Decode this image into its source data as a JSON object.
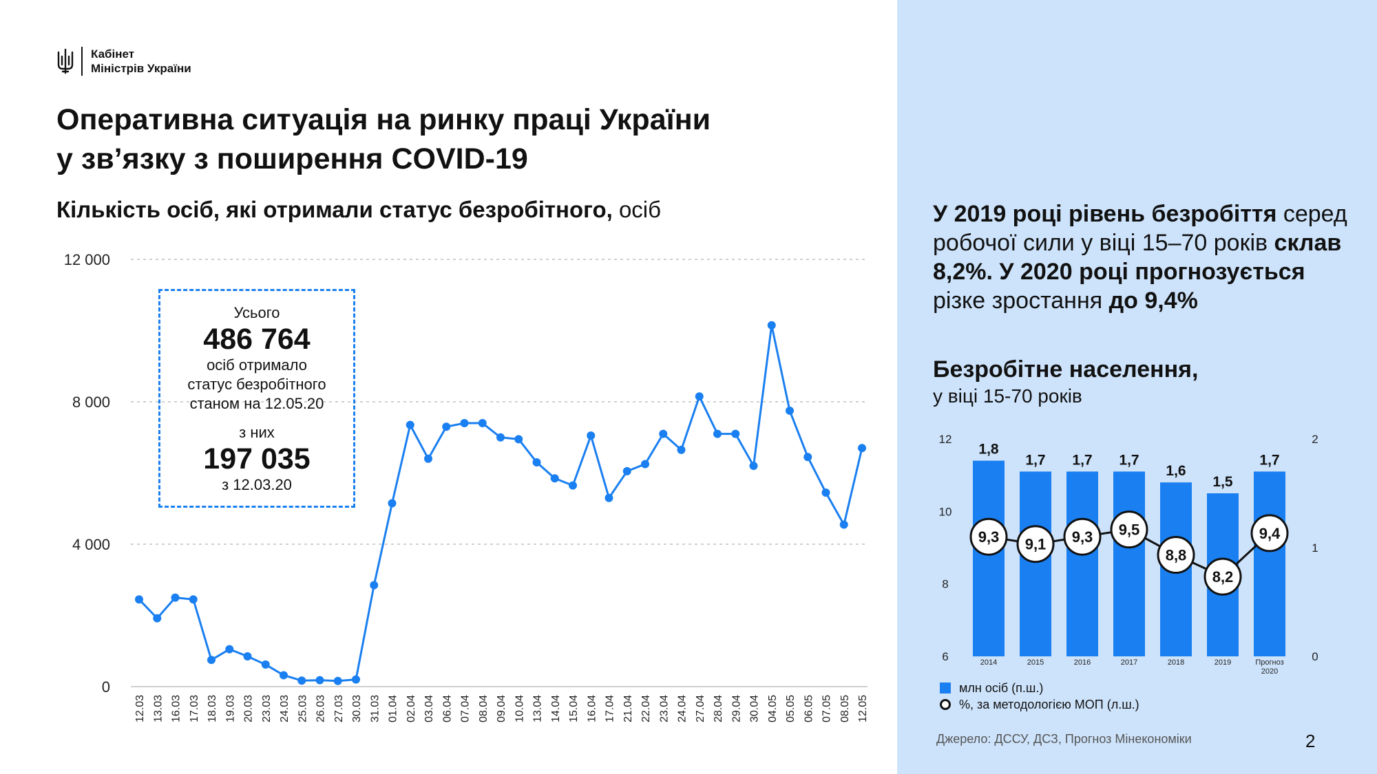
{
  "header": {
    "logo_line1": "Кабінет",
    "logo_line2": "Міністрів України",
    "title_line1": "Оперативна ситуація на ринку праці України",
    "title_line2": "у зв’язку з поширення COVID-19",
    "subtitle_bold": "Кількість осіб, які отримали статус безробітного,",
    "subtitle_regular": " осіб"
  },
  "summary_box": {
    "label_total": "Усього",
    "total": "486 764",
    "line1": "осіб отримало",
    "line2": "статус безробітного",
    "line3": "станом на 12.05.20",
    "label_of_them": "з них",
    "since_value": "197 035",
    "since_label": "з 12.03.20"
  },
  "chart_data": [
    {
      "type": "line",
      "title": "Кількість осіб, які отримали статус безробітного, осіб",
      "ylim": [
        0,
        12000
      ],
      "yticks": [
        0,
        4000,
        8000,
        12000
      ],
      "ytick_labels": [
        "0",
        "4 000",
        "8 000",
        "12 000"
      ],
      "categories": [
        "12.03",
        "13.03",
        "16.03",
        "17.03",
        "18.03",
        "19.03",
        "20.03",
        "23.03",
        "24.03",
        "25.03",
        "26.03",
        "27.03",
        "30.03",
        "31.03",
        "01.04",
        "02.04",
        "03.04",
        "06.04",
        "07.04",
        "08.04",
        "09.04",
        "10.04",
        "13.04",
        "14.04",
        "15.04",
        "16.04",
        "17.04",
        "21.04",
        "22.04",
        "23.04",
        "24.04",
        "27.04",
        "28.04",
        "29.04",
        "30.04",
        "04.05",
        "05.05",
        "06.05",
        "07.05",
        "08.05",
        "12.05"
      ],
      "values": [
        2450,
        1920,
        2500,
        2450,
        750,
        1050,
        850,
        620,
        320,
        170,
        180,
        160,
        200,
        2850,
        5150,
        7350,
        6400,
        7300,
        7400,
        7400,
        7000,
        6950,
        6300,
        5850,
        5650,
        7050,
        5300,
        6050,
        6250,
        7100,
        6650,
        8150,
        7100,
        7100,
        6200,
        10150,
        7750,
        6450,
        5450,
        4550,
        6700
      ],
      "color": "#1a7ff0"
    },
    {
      "type": "bar",
      "title": "Безробітне населення, у віці 15-70 років",
      "categories": [
        "2014",
        "2015",
        "2016",
        "2017",
        "2018",
        "2019",
        "Прогноз 2020"
      ],
      "series": [
        {
          "name": "млн осіб (п.ш.)",
          "values": [
            1.8,
            1.7,
            1.7,
            1.7,
            1.6,
            1.5,
            1.7
          ],
          "labels": [
            "1,8",
            "1,7",
            "1,7",
            "1,7",
            "1,6",
            "1,5",
            "1,7"
          ],
          "axis": "right",
          "ylim": [
            0,
            2
          ],
          "color": "#1a7ff0"
        },
        {
          "name": "%, за методологією МОП (л.ш.)",
          "type": "line",
          "values": [
            9.3,
            9.1,
            9.3,
            9.5,
            8.8,
            8.2,
            9.4
          ],
          "labels": [
            "9,3",
            "9,1",
            "9,3",
            "9,5",
            "8,8",
            "8,2",
            "9,4"
          ],
          "axis": "left",
          "ylim": [
            6,
            12
          ]
        }
      ],
      "left_ticks": [
        "6",
        "8",
        "10",
        "12"
      ],
      "right_ticks": [
        "0",
        "1",
        "2"
      ]
    }
  ],
  "right_panel": {
    "headline_b1": "У 2019 році рівень безробіття",
    "headline_r1": " серед робочої сили у віці 15–70 років ",
    "headline_b2": "склав 8,2%. У 2020 році прогнозується",
    "headline_r2": " різке зростання ",
    "headline_b3": "до 9,4%",
    "section_title": "Безробітне населення,",
    "section_sub": "у віці 15-70 років",
    "legend_bar": "млн осіб (п.ш.)",
    "legend_line": "%, за методологією МОП (л.ш.)",
    "source": "Джерело: ДССУ, ДСЗ, Прогноз Мінекономіки",
    "page_number": "2"
  }
}
